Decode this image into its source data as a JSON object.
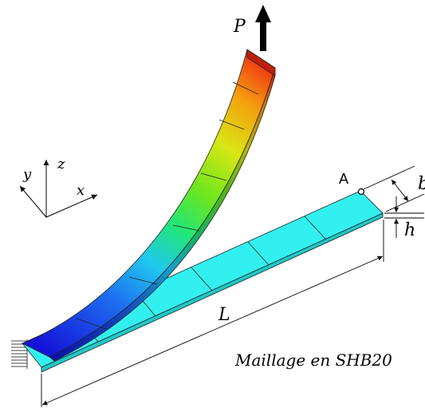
{
  "labels": {
    "load": "P",
    "point": "A",
    "width": "b",
    "thickness": "h",
    "length": "L",
    "caption": "Maillage en SHB20"
  },
  "axes": {
    "x": "x",
    "y": "y",
    "z": "z"
  },
  "colors": {
    "undeformed": "#33f0f0",
    "undeformed_side": "#1ec8c8",
    "gradient": [
      "#1414d8",
      "#1e6ef0",
      "#20c8f0",
      "#20e678",
      "#6ee61e",
      "#d8e614",
      "#f5a00f",
      "#ee2814"
    ]
  },
  "mesh": {
    "undeformed_elements": 6,
    "deformed_elements": 7
  }
}
